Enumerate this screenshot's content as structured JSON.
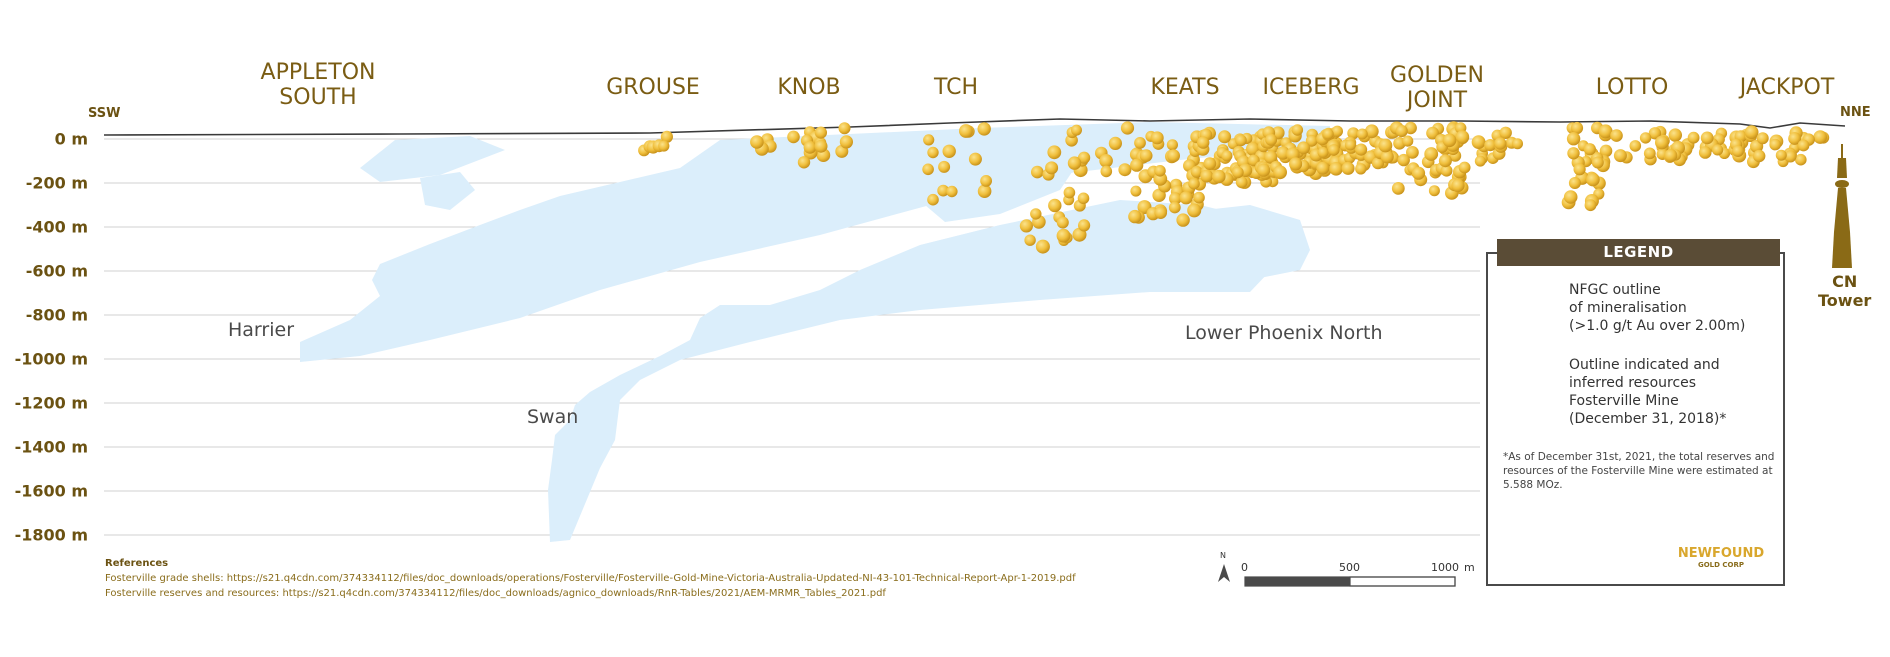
{
  "directions": {
    "left": "SSW",
    "right": "NNE"
  },
  "deposits": [
    {
      "name": "APPLETON\nSOUTH"
    },
    {
      "name": "GROUSE"
    },
    {
      "name": "KNOB"
    },
    {
      "name": "TCH"
    },
    {
      "name": "KEATS"
    },
    {
      "name": "ICEBERG"
    },
    {
      "name": "GOLDEN\nJOINT"
    },
    {
      "name": "LOTTO"
    },
    {
      "name": "JACKPOT"
    }
  ],
  "depth_axis": {
    "unit": "m",
    "ticks": [
      "0 m",
      "-200 m",
      "-400 m",
      "-600 m",
      "-800 m",
      "-1000 m",
      "-1200 m",
      "-1400 m",
      "-1600 m",
      "-1800 m"
    ]
  },
  "resource_zones": [
    "Harrier",
    "Swan",
    "Lower Phoenix North"
  ],
  "cn_tower": {
    "label": "CN\nTower"
  },
  "scale_bar": {
    "north": "N",
    "labels": [
      "0",
      "500",
      "1000"
    ],
    "unit": "m"
  },
  "legend": {
    "title": "LEGEND",
    "items": [
      {
        "icon": "gold-sphere-icon",
        "text": "NFGC outline\nof mineralisation\n(>1.0 g/t Au over 2.00m)"
      },
      {
        "icon": "blue-outline-icon",
        "text": "Outline indicated and\ninferred resources\nFosterville Mine\n(December 31, 2018)*"
      }
    ],
    "note": "*As of December 31st, 2021, the total reserves and resources of the Fosterville Mine were estimated at 5.588 MOz."
  },
  "references": {
    "heading": "References",
    "lines": [
      "Fosterville grade shells: https://s21.q4cdn.com/374334112/files/doc_downloads/operations/Fosterville/Fosterville-Gold-Mine-Victoria-Australia-Updated-NI-43-101-Technical-Report-Apr-1-2019.pdf",
      "Fosterville reserves and resources: https://s21.q4cdn.com/374334112/files/doc_downloads/agnico_downloads/RnR-Tables/2021/AEM-MRMR_Tables_2021.pdf"
    ]
  },
  "logo": {
    "name": "NEWFOUND",
    "sub": "GOLD CORP"
  },
  "colors": {
    "gold": "#f2c23e",
    "resource_blue": "#dbeefb",
    "label_brown": "#7a5c13",
    "legend_header": "#5a4c36"
  }
}
